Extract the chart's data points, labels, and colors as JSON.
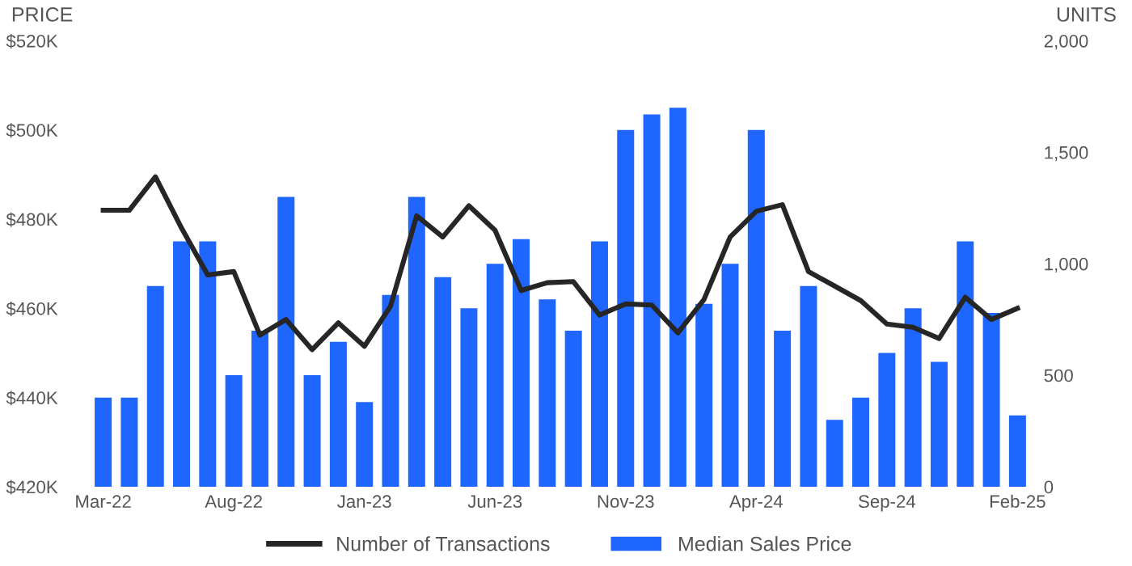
{
  "chart_data": {
    "type": "bar",
    "ylabel": "PRICE",
    "y2label": "UNITS",
    "categories": [
      "Mar-22",
      null,
      null,
      null,
      null,
      "Aug-22",
      null,
      null,
      null,
      null,
      "Jan-23",
      null,
      null,
      null,
      null,
      "Jun-23",
      null,
      null,
      null,
      null,
      "Nov-23",
      null,
      null,
      null,
      null,
      "Apr-24",
      null,
      null,
      null,
      null,
      "Sep-24",
      null,
      null,
      null,
      null,
      "Feb-25"
    ],
    "series": [
      {
        "name": "Number of Transactions",
        "type": "line",
        "axis": "y2",
        "color": "#262626",
        "values": [
          1240,
          1240,
          1390,
          1160,
          950,
          965,
          680,
          750,
          615,
          735,
          630,
          810,
          1215,
          1120,
          1260,
          1150,
          880,
          915,
          920,
          770,
          820,
          815,
          690,
          840,
          1120,
          1235,
          1265,
          965,
          900,
          835,
          730,
          715,
          665,
          850,
          750,
          800
        ]
      },
      {
        "name": "Median Sales Price",
        "color": "#1f66ff",
        "values": [
          440,
          440,
          465,
          475,
          475,
          445,
          455,
          485,
          445,
          452.5,
          439,
          463,
          485,
          467,
          460,
          470,
          475.5,
          462,
          455,
          475,
          500,
          503.5,
          505,
          461,
          470,
          500,
          455,
          465,
          435,
          440,
          450,
          460,
          448,
          475,
          459,
          436
        ]
      }
    ],
    "ylim": [
      420,
      520
    ],
    "yticks": [
      {
        "value": 420,
        "label": "$420K"
      },
      {
        "value": 440,
        "label": "$440K"
      },
      {
        "value": 460,
        "label": "$460K"
      },
      {
        "value": 480,
        "label": "$480K"
      },
      {
        "value": 500,
        "label": "$500K"
      },
      {
        "value": 520,
        "label": "$520K"
      }
    ],
    "y2lim": [
      0,
      2000
    ],
    "y2ticks": [
      {
        "value": 0,
        "label": "0"
      },
      {
        "value": 500,
        "label": "500"
      },
      {
        "value": 1000,
        "label": "1,000"
      },
      {
        "value": 1500,
        "label": "1,500"
      },
      {
        "value": 2000,
        "label": "2,000"
      }
    ],
    "legend": "bottom",
    "grid": false
  }
}
